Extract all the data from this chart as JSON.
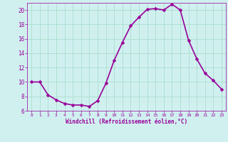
{
  "x": [
    0,
    1,
    2,
    3,
    4,
    5,
    6,
    7,
    8,
    9,
    10,
    11,
    12,
    13,
    14,
    15,
    16,
    17,
    18,
    19,
    20,
    21,
    22,
    23
  ],
  "y": [
    10.0,
    10.0,
    8.2,
    7.5,
    7.0,
    6.8,
    6.8,
    6.6,
    7.4,
    9.8,
    13.0,
    15.5,
    17.8,
    19.0,
    20.1,
    20.2,
    20.0,
    20.8,
    20.0,
    15.8,
    13.2,
    11.2,
    10.2,
    9.0
  ],
  "line_color": "#990099",
  "marker": "D",
  "marker_size": 2.5,
  "bg_color": "#d0f0f0",
  "grid_color": "#aaddcc",
  "xlabel": "Windchill (Refroidissement éolien,°C)",
  "xlabel_color": "#990099",
  "tick_color": "#990099",
  "ylim": [
    6,
    21
  ],
  "xlim": [
    -0.5,
    23.5
  ],
  "yticks": [
    6,
    8,
    10,
    12,
    14,
    16,
    18,
    20
  ],
  "xticks": [
    0,
    1,
    2,
    3,
    4,
    5,
    6,
    7,
    8,
    9,
    10,
    11,
    12,
    13,
    14,
    15,
    16,
    17,
    18,
    19,
    20,
    21,
    22,
    23
  ],
  "linewidth": 1.2
}
